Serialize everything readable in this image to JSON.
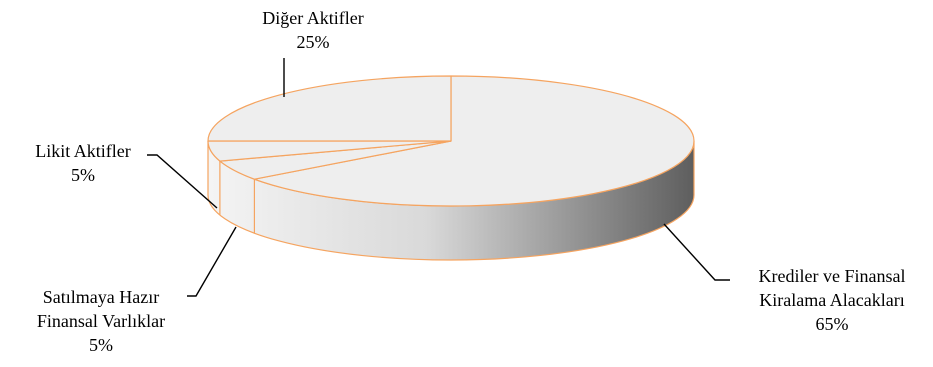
{
  "chart_data": {
    "type": "pie",
    "style": "3d",
    "slices": [
      {
        "label_lines": [
          "Krediler ve Finansal",
          "Kiralama Alacakları"
        ],
        "value_label": "65%",
        "value": 65
      },
      {
        "label_lines": [
          "Satılmaya Hazır",
          "Finansal Varlıklar"
        ],
        "value_label": "5%",
        "value": 5
      },
      {
        "label_lines": [
          "Likit Aktifler"
        ],
        "value_label": "5%",
        "value": 5
      },
      {
        "label_lines": [
          "Diğer Aktifler"
        ],
        "value_label": "25%",
        "value": 25
      }
    ],
    "colors": {
      "slice_fill": "#eeeeee",
      "slice_border": "#f5a460",
      "side_light": "#f4f4f4",
      "side_dark": "#5e5e5e",
      "leader_line": "#000000"
    },
    "legend": "none"
  }
}
